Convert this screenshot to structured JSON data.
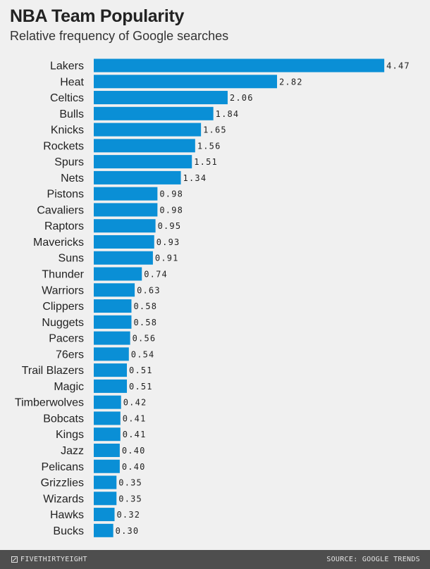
{
  "title": "NBA Team Popularity",
  "subtitle": "Relative frequency of Google searches",
  "footer": {
    "brand": "FIVETHIRTYEIGHT",
    "brand_icon": "fivethirtyeight-logo-icon",
    "source": "SOURCE: GOOGLE TRENDS"
  },
  "colors": {
    "bar": "#0a8fd6",
    "background": "#f0f0f0",
    "footer_bg": "#4e4e4e"
  },
  "chart_data": {
    "type": "bar",
    "orientation": "horizontal",
    "title": "NBA Team Popularity",
    "subtitle": "Relative frequency of Google searches",
    "categories": [
      "Lakers",
      "Heat",
      "Celtics",
      "Bulls",
      "Knicks",
      "Rockets",
      "Spurs",
      "Nets",
      "Pistons",
      "Cavaliers",
      "Raptors",
      "Mavericks",
      "Suns",
      "Thunder",
      "Warriors",
      "Clippers",
      "Nuggets",
      "Pacers",
      "76ers",
      "Trail Blazers",
      "Magic",
      "Timberwolves",
      "Bobcats",
      "Kings",
      "Jazz",
      "Pelicans",
      "Grizzlies",
      "Wizards",
      "Hawks",
      "Bucks"
    ],
    "values": [
      4.47,
      2.82,
      2.06,
      1.84,
      1.65,
      1.56,
      1.51,
      1.34,
      0.98,
      0.98,
      0.95,
      0.93,
      0.91,
      0.74,
      0.63,
      0.58,
      0.58,
      0.56,
      0.54,
      0.51,
      0.51,
      0.42,
      0.41,
      0.41,
      0.4,
      0.4,
      0.35,
      0.35,
      0.32,
      0.3
    ],
    "value_labels": [
      "4.47",
      "2.82",
      "2.06",
      "1.84",
      "1.65",
      "1.56",
      "1.51",
      "1.34",
      "0.98",
      "0.98",
      "0.95",
      "0.93",
      "0.91",
      "0.74",
      "0.63",
      "0.58",
      "0.58",
      "0.56",
      "0.54",
      "0.51",
      "0.51",
      "0.42",
      "0.41",
      "0.41",
      "0.40",
      "0.40",
      "0.35",
      "0.35",
      "0.32",
      "0.30"
    ],
    "grid": false,
    "legend": "none"
  }
}
